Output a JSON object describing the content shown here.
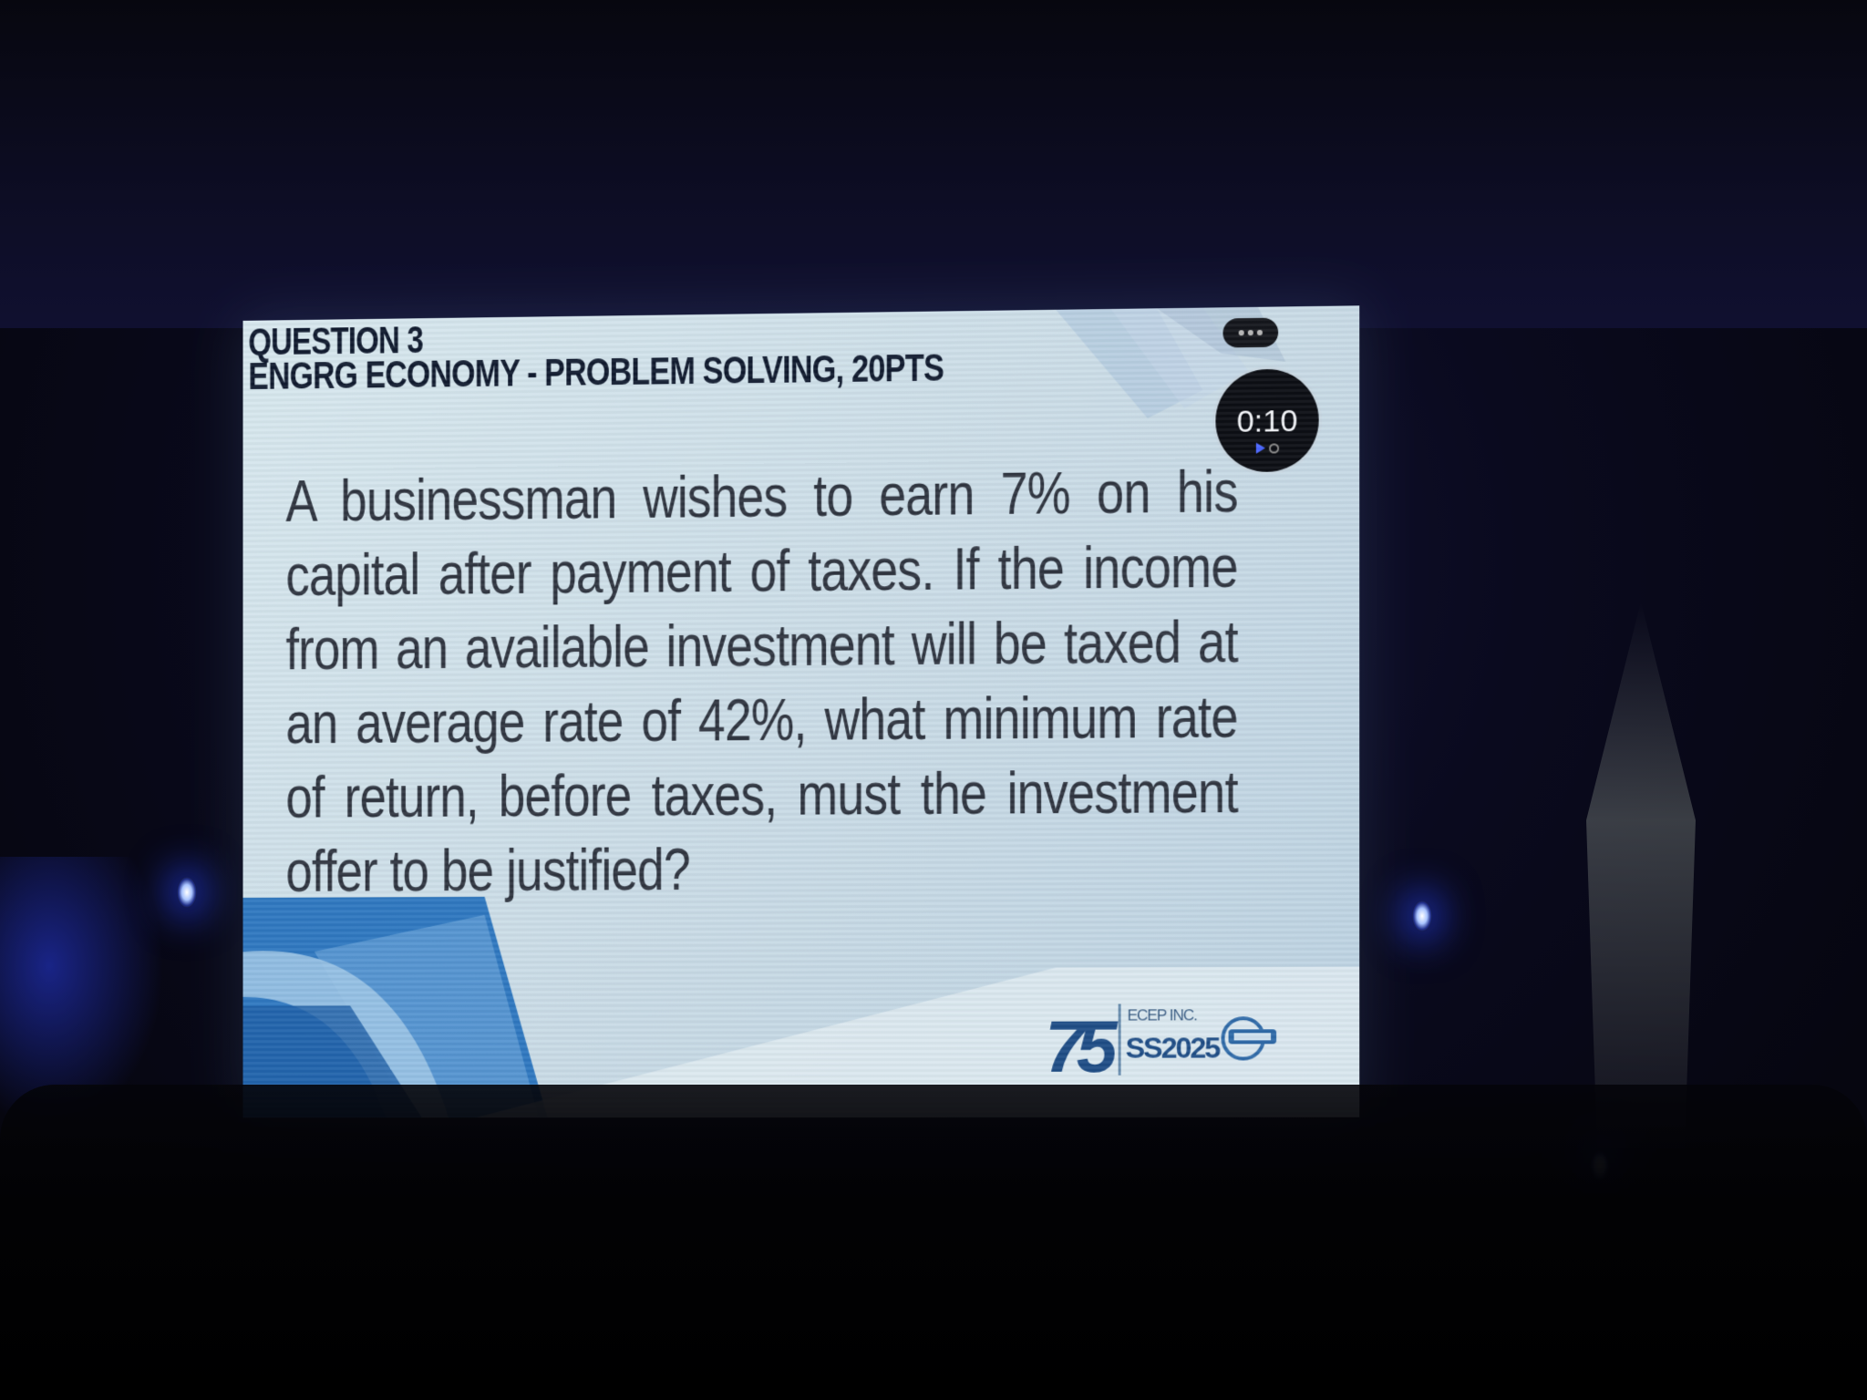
{
  "slide": {
    "title": "QUESTION 3",
    "subtitle": "ENGRG ECONOMY - PROBLEM SOLVING, 20PTS",
    "question": "A businessman wishes to earn 7% on his capital after payment of taxes. If the income from an available investment will be taxed at an average rate of 42%, what minimum rate of return, before taxes, must the investment offer to be justified?",
    "timer": "0:10"
  },
  "branding": {
    "anniversary": "75",
    "org_small": "ECEP INC.",
    "event": "SS2025"
  },
  "colors": {
    "screen_bg": "#d2e3eb",
    "accent_blue": "#2f78c0",
    "text_dark": "#2f3540"
  }
}
